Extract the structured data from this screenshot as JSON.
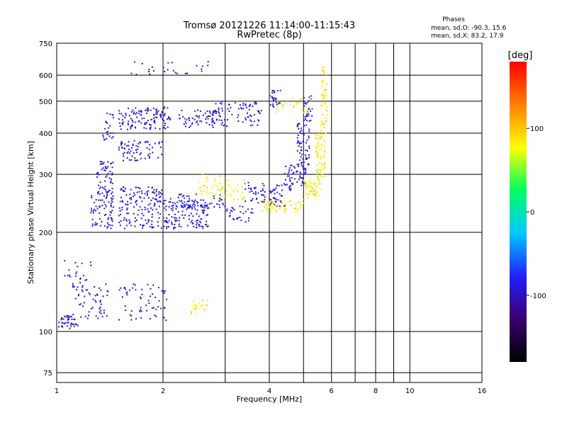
{
  "chart_data": {
    "type": "scatter",
    "title": "Tromsø 20121226 11:14:00-11:15:43",
    "subtitle": "RwPretec (8p)",
    "xlabel": "Frequency [MHz]",
    "ylabel": "Stationary phase Virtual Height [km]",
    "x_scale": "log",
    "y_scale": "log",
    "xlim": [
      1,
      16
    ],
    "ylim": [
      70,
      750
    ],
    "x_ticks": [
      1,
      2,
      4,
      6,
      8,
      10,
      16
    ],
    "x_minor_ticks": [
      3,
      5,
      7,
      9
    ],
    "y_ticks": [
      75,
      100,
      200,
      300,
      400,
      500,
      600,
      750
    ],
    "grid": true,
    "stats": {
      "heading": "Phases",
      "o_line": "mean, sd,O: -90.3, 15.6",
      "x_line": "mean, sd,X:  83.2, 17.9"
    },
    "colorbar": {
      "label": "[deg]",
      "range": [
        -180,
        180
      ],
      "ticks": [
        100,
        0,
        -100
      ],
      "palette": [
        "#000000",
        "#3a0070",
        "#2020ff",
        "#00c8ff",
        "#00ff60",
        "#ffff00",
        "#ff7f00",
        "#ff0000"
      ]
    },
    "series": [
      {
        "name": "O",
        "mean_phase": -90.3,
        "sd_phase": 15.6,
        "bands": [
          {
            "f": [
              1.0,
              1.15
            ],
            "h": [
              102,
              112
            ],
            "n": 40
          },
          {
            "f": [
              1.1,
              1.4
            ],
            "h": [
              108,
              140
            ],
            "n": 60
          },
          {
            "f": [
              1.05,
              1.25
            ],
            "h": [
              140,
              165
            ],
            "n": 20
          },
          {
            "f": [
              1.25,
              1.45
            ],
            "h": [
              205,
              260
            ],
            "n": 70
          },
          {
            "f": [
              1.3,
              1.45
            ],
            "h": [
              260,
              330
            ],
            "n": 60
          },
          {
            "f": [
              1.35,
              1.45
            ],
            "h": [
              380,
              470
            ],
            "n": 25
          },
          {
            "f": [
              1.5,
              2.05
            ],
            "h": [
              108,
              140
            ],
            "n": 60
          },
          {
            "f": [
              1.5,
              2.7
            ],
            "h": [
              205,
              250
            ],
            "n": 220
          },
          {
            "f": [
              1.5,
              2.0
            ],
            "h": [
              250,
              275
            ],
            "n": 60
          },
          {
            "f": [
              2.1,
              3.0
            ],
            "h": [
              235,
              262
            ],
            "n": 60
          },
          {
            "f": [
              3.0,
              3.6
            ],
            "h": [
              215,
              240
            ],
            "n": 30
          },
          {
            "f": [
              3.4,
              3.9
            ],
            "h": [
              245,
              285
            ],
            "n": 40
          },
          {
            "f": [
              1.5,
              2.0
            ],
            "h": [
              330,
              380
            ],
            "n": 70
          },
          {
            "f": [
              1.5,
              2.1
            ],
            "h": [
              410,
              480
            ],
            "n": 120
          },
          {
            "f": [
              2.2,
              2.8
            ],
            "h": [
              415,
              470
            ],
            "n": 60
          },
          {
            "f": [
              2.8,
              3.8
            ],
            "h": [
              420,
              500
            ],
            "n": 80
          },
          {
            "f": [
              4.0,
              4.3
            ],
            "h": [
              480,
              540
            ],
            "n": 25
          },
          {
            "f": [
              4.0,
              4.6
            ],
            "h": [
              240,
              280
            ],
            "n": 40
          },
          {
            "f": [
              4.4,
              5.1
            ],
            "h": [
              270,
              320
            ],
            "n": 60
          },
          {
            "f": [
              4.8,
              5.2
            ],
            "h": [
              320,
              430
            ],
            "n": 60
          },
          {
            "f": [
              5.0,
              5.3
            ],
            "h": [
              430,
              520
            ],
            "n": 30
          },
          {
            "f": [
              1.6,
              2.7
            ],
            "h": [
              600,
              660
            ],
            "n": 25
          }
        ]
      },
      {
        "name": "X",
        "mean_phase": 83.2,
        "sd_phase": 17.9,
        "bands": [
          {
            "f": [
              2.4,
              2.7
            ],
            "h": [
              112,
              125
            ],
            "n": 25
          },
          {
            "f": [
              2.5,
              3.0
            ],
            "h": [
              255,
              300
            ],
            "n": 35
          },
          {
            "f": [
              2.9,
              3.5
            ],
            "h": [
              250,
              290
            ],
            "n": 30
          },
          {
            "f": [
              3.8,
              5.0
            ],
            "h": [
              230,
              250
            ],
            "n": 60
          },
          {
            "f": [
              5.0,
              5.6
            ],
            "h": [
              250,
              290
            ],
            "n": 50
          },
          {
            "f": [
              5.4,
              5.75
            ],
            "h": [
              290,
              400
            ],
            "n": 70
          },
          {
            "f": [
              5.6,
              5.85
            ],
            "h": [
              400,
              640
            ],
            "n": 50
          },
          {
            "f": [
              4.2,
              5.3
            ],
            "h": [
              460,
              510
            ],
            "n": 30
          }
        ]
      }
    ]
  }
}
